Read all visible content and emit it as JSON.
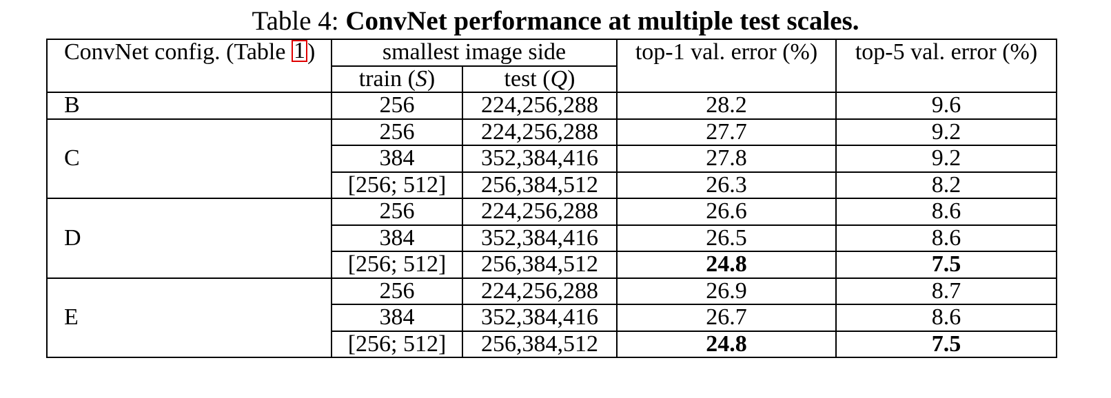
{
  "caption": {
    "prefix": "Table 4:",
    "title": "ConvNet performance at multiple test scales."
  },
  "header": {
    "config_label_pre": "ConvNet config. (Table ",
    "config_ref": "1",
    "config_label_post": ")",
    "side_group": "smallest image side",
    "train_pre": "train (",
    "train_var": "S",
    "train_post": ")",
    "test_pre": "test (",
    "test_var": "Q",
    "test_post": ")",
    "top1": "top-1 val. error (%)",
    "top5": "top-5 val. error (%)"
  },
  "groups": [
    {
      "config": "B",
      "rows": [
        {
          "train": "256",
          "test": "224,256,288",
          "top1": "28.2",
          "top5": "9.6"
        }
      ]
    },
    {
      "config": "C",
      "rows": [
        {
          "train": "256",
          "test": "224,256,288",
          "top1": "27.7",
          "top5": "9.2"
        },
        {
          "train": "384",
          "test": "352,384,416",
          "top1": "27.8",
          "top5": "9.2"
        },
        {
          "train": "[256; 512]",
          "test": "256,384,512",
          "top1": "26.3",
          "top5": "8.2"
        }
      ]
    },
    {
      "config": "D",
      "rows": [
        {
          "train": "256",
          "test": "224,256,288",
          "top1": "26.6",
          "top5": "8.6"
        },
        {
          "train": "384",
          "test": "352,384,416",
          "top1": "26.5",
          "top5": "8.6"
        },
        {
          "train": "[256; 512]",
          "test": "256,384,512",
          "top1": "24.8",
          "top5": "7.5"
        }
      ]
    },
    {
      "config": "E",
      "rows": [
        {
          "train": "256",
          "test": "224,256,288",
          "top1": "26.9",
          "top5": "8.7"
        },
        {
          "train": "384",
          "test": "352,384,416",
          "top1": "26.7",
          "top5": "8.6"
        },
        {
          "train": "[256; 512]",
          "test": "256,384,512",
          "top1": "24.8",
          "top5": "7.5"
        }
      ]
    }
  ]
}
